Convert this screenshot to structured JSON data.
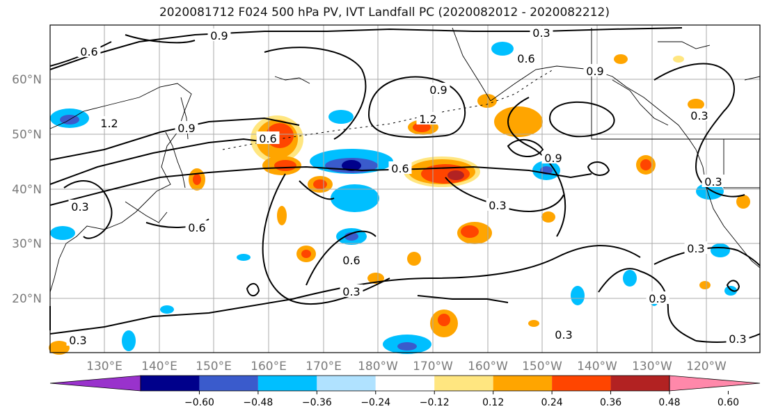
{
  "title": "2020081712 F024 500 hPa PV, IVT Landfall PC (2020082012 - 2020082212)",
  "lat_labels": [
    "60°N",
    "50°N",
    "40°N",
    "30°N",
    "20°N"
  ],
  "lon_labels": [
    "130°E",
    "140°E",
    "150°E",
    "160°E",
    "170°E",
    "180°W",
    "170°W",
    "160°W",
    "150°W",
    "140°W",
    "130°W",
    "120°W"
  ],
  "contour_labels": [
    "0.9",
    "0.3",
    "0.6",
    "1.2",
    "0.9",
    "0.6",
    "0.9",
    "0.9",
    "0.6",
    "1.2",
    "0.6",
    "0.3",
    "0.9",
    "0.6",
    "0.3",
    "0.6",
    "0.3",
    "0.3",
    "0.3",
    "0.9",
    "0.3",
    "0.3",
    "0.3",
    "0.3"
  ],
  "colorbar": {
    "colors": [
      "#9932cc",
      "#00008b",
      "#3a5bcc",
      "#00bfff",
      "#b0e2ff",
      "#ffffff",
      "#ffe680",
      "#ffa500",
      "#ff4500",
      "#b22222",
      "#ff88aa"
    ],
    "ticks": [
      "−0.60",
      "−0.48",
      "−0.36",
      "−0.24",
      "−0.12",
      "0.12",
      "0.24",
      "0.36",
      "0.48",
      "0.60"
    ]
  }
}
